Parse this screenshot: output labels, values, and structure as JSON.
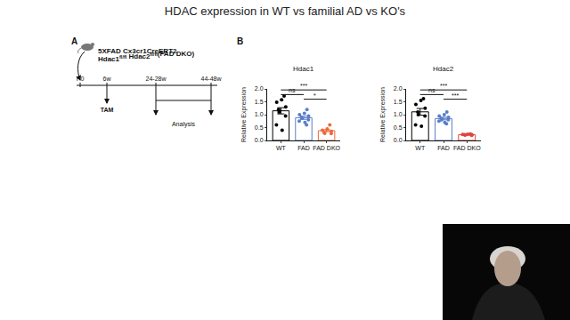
{
  "slide": {
    "title": "HDAC expression in WT vs familial AD vs KO's",
    "panel_labels": [
      "A",
      "B"
    ]
  },
  "diagram": {
    "genotype": [
      [
        {
          "text": "5XFAD Cx3cr1CreERT2",
          "sup": false
        }
      ],
      [
        {
          "text": "Hdac1",
          "sup": false
        },
        {
          "text": "fl/fl",
          "sup": true
        },
        {
          "text": " Hdac2",
          "sup": false
        },
        {
          "text": "fl/fl",
          "sup": true
        },
        {
          "text": "(FAD DKO)",
          "sup": false
        }
      ]
    ],
    "timeline": [
      "P0",
      "6w",
      "24-28w",
      "44-48w"
    ],
    "treatment": {
      "at": "6w",
      "label": "TAM"
    },
    "analysis": {
      "from": "24-28w",
      "to": "44-48w",
      "label": "Analysis"
    }
  },
  "chart_data": [
    {
      "type": "bar",
      "title": "Hdac1",
      "y_label": "Relative Expression",
      "categories": [
        "WT",
        "FAD",
        "FAD DKO"
      ],
      "values": [
        1.15,
        0.88,
        0.38
      ],
      "errors": [
        0.12,
        0.06,
        0.04
      ],
      "points": [
        [
          1.72,
          1.58,
          1.48,
          1.3,
          1.2,
          1.1,
          0.95,
          0.6,
          0.4
        ],
        [
          1.2,
          1.05,
          1.0,
          0.95,
          0.9,
          0.85,
          0.8,
          0.75,
          0.7,
          0.6
        ],
        [
          0.6,
          0.45,
          0.4,
          0.35,
          0.3,
          0.28,
          0.27
        ]
      ],
      "colors": [
        "#000000",
        "#5b7fc7",
        "#ec6a3c"
      ],
      "ylim": [
        0,
        2
      ],
      "yticks": [
        {
          "value": 0,
          "label": "0.0"
        },
        0.5,
        {
          "value": 1,
          "label": "1.0"
        },
        1.5,
        {
          "value": 2,
          "label": "2.0"
        }
      ],
      "significance": [
        {
          "from": "WT",
          "to": "FAD",
          "label": "ns"
        },
        {
          "from": "WT",
          "to": "FAD DKO",
          "label": "***"
        },
        {
          "from": "FAD",
          "to": "FAD DKO",
          "label": "*"
        }
      ]
    },
    {
      "type": "bar",
      "title": "Hdac2",
      "y_label": "Relative Expression",
      "categories": [
        "WT",
        "FAD",
        "FAD DKO"
      ],
      "values": [
        1.11,
        0.85,
        0.22
      ],
      "errors": [
        0.13,
        0.05,
        0.01
      ],
      "points": [
        [
          1.62,
          1.55,
          1.4,
          1.25,
          1.1,
          1.0,
          0.95,
          0.6,
          0.55
        ],
        [
          1.1,
          1.0,
          0.95,
          0.9,
          0.85,
          0.8,
          0.8,
          0.75,
          0.7,
          0.65
        ],
        [
          0.25,
          0.24,
          0.23,
          0.22,
          0.22,
          0.21,
          0.2
        ]
      ],
      "colors": [
        "#000000",
        "#5b7fc7",
        "#e0443c"
      ],
      "ylim": [
        0,
        2
      ],
      "yticks": [
        {
          "value": 0,
          "label": "0.0"
        },
        0.5,
        {
          "value": 1,
          "label": "1.0"
        },
        1.5,
        {
          "value": 2,
          "label": "2.0"
        }
      ],
      "significance": [
        {
          "from": "WT",
          "to": "FAD",
          "label": "ns"
        },
        {
          "from": "WT",
          "to": "FAD DKO",
          "label": "***"
        },
        {
          "from": "FAD",
          "to": "FAD DKO",
          "label": "***"
        }
      ]
    }
  ]
}
